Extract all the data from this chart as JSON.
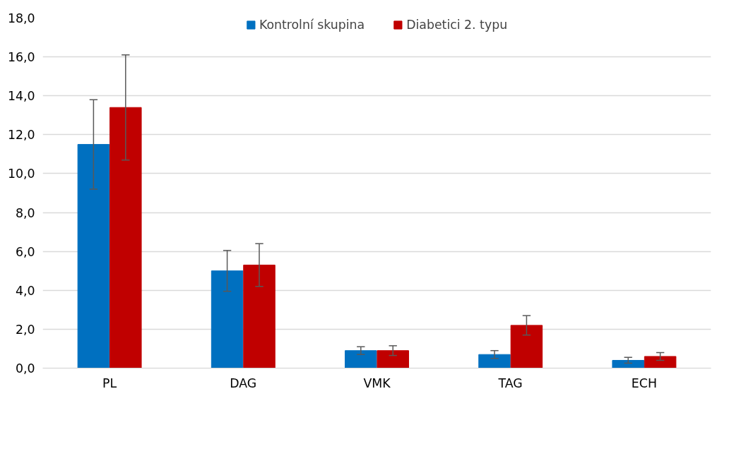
{
  "chart_data": {
    "type": "bar",
    "categories": [
      "PL",
      "DAG",
      "VMK",
      "TAG",
      "ECH"
    ],
    "series": [
      {
        "name": "Kontrolní skupina",
        "color": "#0070c0",
        "values": [
          11.5,
          5.0,
          0.9,
          0.7,
          0.4
        ],
        "errors": [
          2.3,
          1.05,
          0.2,
          0.2,
          0.15
        ]
      },
      {
        "name": "Diabetici 2. typu",
        "color": "#c00000",
        "values": [
          13.4,
          5.3,
          0.9,
          2.2,
          0.6
        ],
        "errors": [
          2.7,
          1.1,
          0.25,
          0.5,
          0.2
        ]
      }
    ],
    "ylim": [
      0,
      18
    ],
    "yticks": [
      {
        "value": 0,
        "label": "0,0"
      },
      {
        "value": 2,
        "label": "2,0"
      },
      {
        "value": 4,
        "label": "4,0"
      },
      {
        "value": 6,
        "label": "6,0"
      },
      {
        "value": 8,
        "label": "8,0"
      },
      {
        "value": 10,
        "label": "10,0"
      },
      {
        "value": 12,
        "label": "12,0"
      },
      {
        "value": 14,
        "label": "14,0"
      },
      {
        "value": 16,
        "label": "16,0"
      },
      {
        "value": 18,
        "label": "18,0"
      }
    ],
    "grid": "y",
    "legend": "top"
  }
}
